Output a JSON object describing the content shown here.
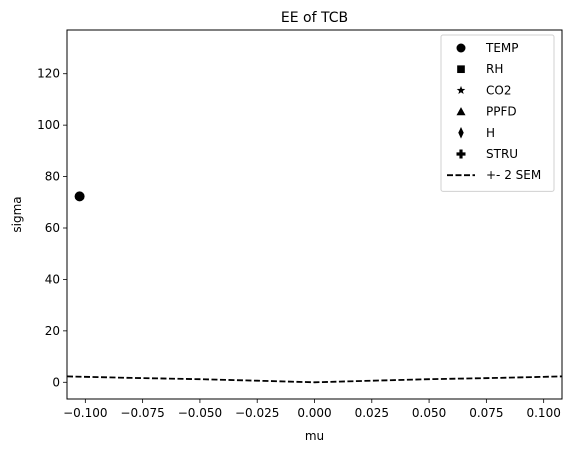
{
  "chart_data": {
    "type": "scatter",
    "title": "EE of TCB",
    "xlabel": "mu",
    "ylabel": "sigma",
    "xlim": [
      -0.108,
      0.108
    ],
    "ylim": [
      -6.5,
      137
    ],
    "xticks": [
      -0.1,
      -0.075,
      -0.05,
      -0.025,
      0.0,
      0.025,
      0.05,
      0.075,
      0.1
    ],
    "xtick_labels": [
      "−0.100",
      "−0.075",
      "−0.050",
      "−0.025",
      "0.000",
      "0.025",
      "0.050",
      "0.075",
      "0.100"
    ],
    "yticks": [
      0,
      20,
      40,
      60,
      80,
      100,
      120
    ],
    "ytick_labels": [
      "0",
      "20",
      "40",
      "60",
      "80",
      "100",
      "120"
    ],
    "grid": false,
    "legend_placement": "top-right",
    "series": [
      {
        "name": "TEMP",
        "marker": "circle",
        "points": [
          {
            "x": -0.1025,
            "y": 72.3
          }
        ]
      },
      {
        "name": "RH",
        "marker": "square",
        "points": []
      },
      {
        "name": "CO2",
        "marker": "star",
        "points": []
      },
      {
        "name": "PPFD",
        "marker": "triangle",
        "points": []
      },
      {
        "name": "H",
        "marker": "diamond",
        "points": []
      },
      {
        "name": "STRU",
        "marker": "plus",
        "points": []
      }
    ],
    "sem_line": {
      "name": "+- 2 SEM",
      "style": "dashed",
      "x": [
        -0.108,
        -0.08,
        -0.05,
        -0.025,
        0.0,
        0.025,
        0.05,
        0.08,
        0.108
      ],
      "y": [
        2.3,
        1.7,
        1.2,
        0.6,
        0.0,
        0.6,
        1.2,
        1.7,
        2.3
      ]
    },
    "colors": {
      "marker": "#000000",
      "line": "#000000",
      "axis": "#000000"
    }
  }
}
